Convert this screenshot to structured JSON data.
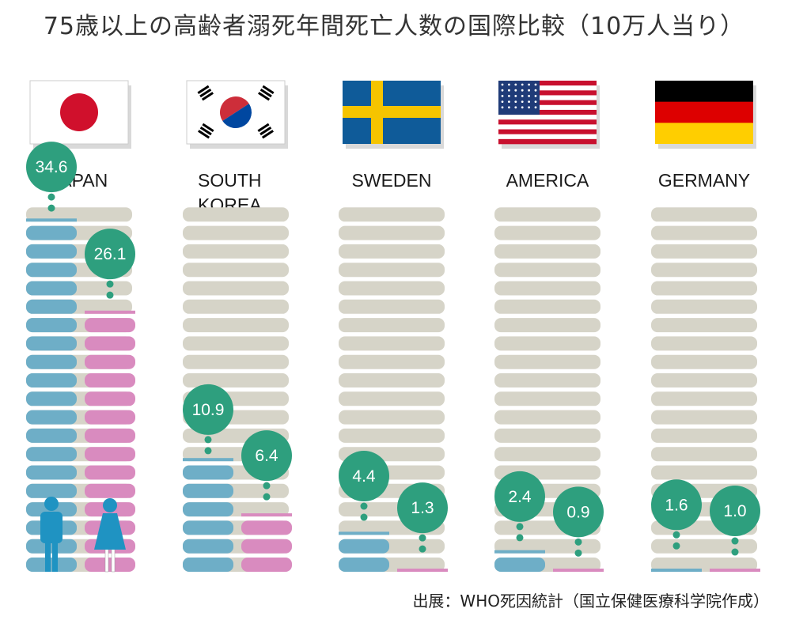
{
  "title": "75歳以上の高齢者溺死年間死亡人数の国際比較（10万人当り）",
  "source": "出展：WHO死因統計（国立保健医療科学院作成）",
  "colors": {
    "male": "#6eaec7",
    "female": "#d98bbf",
    "track": "#d6d4c8",
    "bubble": "#2e9f7e",
    "figure": "#1f93c2"
  },
  "chart_data": {
    "type": "bar",
    "title": "75歳以上の高齢者溺死年間死亡人数の国際比較（10万人当り）",
    "unit": "10万人当り",
    "ylim": [
      0,
      36
    ],
    "categories": [
      "JAPAN",
      "SOUTH KOREA",
      "SWEDEN",
      "AMERICA",
      "GERMANY"
    ],
    "category_lines": [
      [
        "JAPAN"
      ],
      [
        "SOUTH",
        "KOREA"
      ],
      [
        "SWEDEN"
      ],
      [
        "AMERICA"
      ],
      [
        "GERMANY"
      ]
    ],
    "series": [
      {
        "values": [
          34.6,
          10.9,
          4.4,
          2.4,
          1.6
        ],
        "labels": [
          "34.6",
          "10.9",
          "4.4",
          "2.4",
          "1.6"
        ]
      },
      {
        "values": [
          26.1,
          6.4,
          1.3,
          0.9,
          1.0
        ],
        "labels": [
          "26.1",
          "6.4",
          "1.3",
          "0.9",
          "1.0"
        ]
      }
    ]
  }
}
